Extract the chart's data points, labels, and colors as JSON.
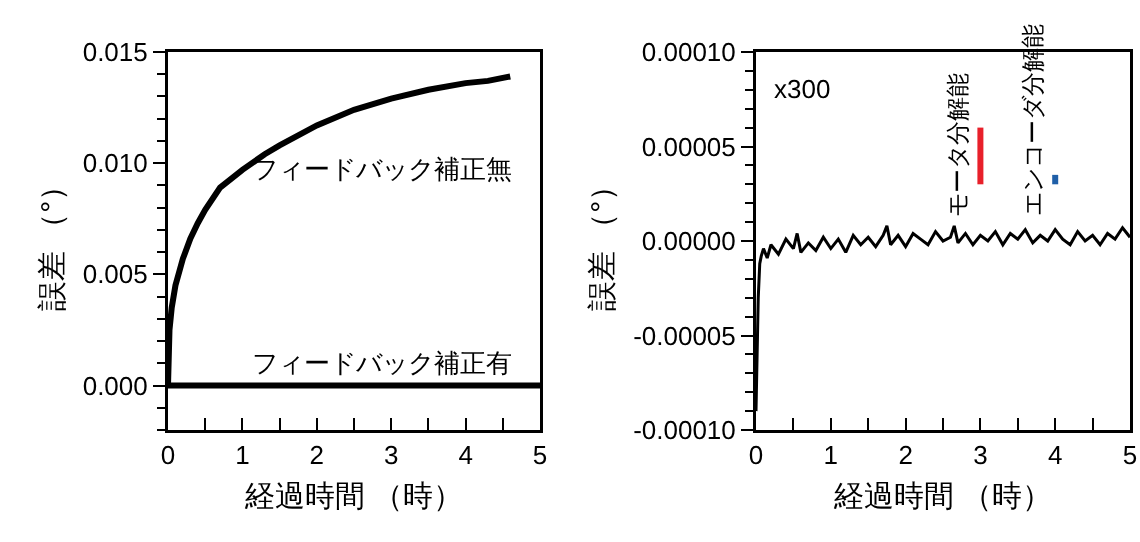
{
  "chart_data": [
    {
      "type": "line",
      "xlabel": "経過時間 （時）",
      "ylabel": "誤差 （°）",
      "xlim": [
        0,
        5
      ],
      "xticks": [
        0,
        1,
        2,
        3,
        4,
        5
      ],
      "ylim": [
        -0.002,
        0.015
      ],
      "yticks": [
        {
          "value": 0,
          "label": "0.000"
        },
        {
          "value": 0.005,
          "label": "0.005"
        },
        {
          "value": 0.01,
          "label": "0.010"
        },
        {
          "value": 0.015,
          "label": "0.015"
        }
      ],
      "grid": false,
      "legend": false,
      "series": [
        {
          "name": "フィードバック補正無",
          "color": "#000000",
          "x": [
            0,
            0.02,
            0.05,
            0.1,
            0.2,
            0.3,
            0.4,
            0.5,
            0.7,
            1,
            1.3,
            1.5,
            2,
            2.5,
            3,
            3.5,
            4,
            4.3,
            4.6
          ],
          "values": [
            0,
            0.0025,
            0.0035,
            0.0045,
            0.0057,
            0.0066,
            0.0073,
            0.0079,
            0.0089,
            0.0097,
            0.0104,
            0.0108,
            0.0117,
            0.0124,
            0.0129,
            0.0133,
            0.0136,
            0.0137,
            0.0139
          ]
        },
        {
          "name": "フィードバック補正有",
          "color": "#000000",
          "x": [
            0,
            5
          ],
          "values": [
            0,
            0
          ]
        }
      ]
    },
    {
      "type": "line",
      "xlabel": "経過時間 （時）",
      "ylabel": "誤差 （°）",
      "xlim": [
        0,
        5
      ],
      "xticks": [
        0,
        1,
        2,
        3,
        4,
        5
      ],
      "ylim": [
        -0.0001,
        0.0001
      ],
      "yticks": [
        {
          "value": -0.0001,
          "label": "-0.00010"
        },
        {
          "value": -5e-05,
          "label": "-0.00005"
        },
        {
          "value": 0,
          "label": "0.00000"
        },
        {
          "value": 5e-05,
          "label": "0.00005"
        },
        {
          "value": 0.0001,
          "label": "0.00010"
        }
      ],
      "grid": false,
      "legend": false,
      "annotations": [
        "x300"
      ],
      "series": [
        {
          "color": "#000000",
          "x": [
            0,
            0.01,
            0.02,
            0.03,
            0.05,
            0.07,
            0.1,
            0.15,
            0.2,
            0.3,
            0.4,
            0.5,
            0.55,
            0.6,
            0.7,
            0.8,
            0.9,
            1,
            1.1,
            1.2,
            1.3,
            1.4,
            1.5,
            1.6,
            1.7,
            1.75,
            1.8,
            1.9,
            2,
            2.1,
            2.2,
            2.3,
            2.4,
            2.5,
            2.6,
            2.65,
            2.7,
            2.8,
            2.9,
            3,
            3.1,
            3.2,
            3.3,
            3.4,
            3.5,
            3.6,
            3.7,
            3.8,
            3.9,
            4,
            4.1,
            4.2,
            4.3,
            4.4,
            4.5,
            4.6,
            4.7,
            4.8,
            4.9,
            5
          ],
          "values": [
            -9e-05,
            -7e-05,
            -5e-05,
            -3e-05,
            -1.2e-05,
            -8e-06,
            -4e-06,
            -9e-06,
            -2e-06,
            -7e-06,
            1e-06,
            -4e-06,
            4e-06,
            -6e-06,
            -1e-06,
            -5e-06,
            2e-06,
            -4e-06,
            1e-06,
            -6e-06,
            3e-06,
            -2e-06,
            2e-06,
            -3e-06,
            3e-06,
            8e-06,
            -2e-06,
            3e-06,
            -3e-06,
            4e-06,
            1e-06,
            -2e-06,
            5e-06,
            0,
            2e-06,
            8e-06,
            -1e-06,
            4e-06,
            -2e-06,
            3e-06,
            0,
            5e-06,
            -2e-06,
            4e-06,
            1e-06,
            6e-06,
            -1e-06,
            3e-06,
            0,
            6e-06,
            1e-06,
            -2e-06,
            5e-06,
            0,
            3e-06,
            -2e-06,
            4e-06,
            1e-06,
            7e-06,
            2e-06
          ]
        },
        {
          "name": "モータ分解能",
          "color": "#e8202a",
          "x": [
            3,
            3
          ],
          "values": [
            3e-05,
            6e-05
          ]
        },
        {
          "name": "エンコーダ分解能",
          "color": "#1f5fa8",
          "x": [
            4,
            4
          ],
          "values": [
            3e-05,
            3.5e-05
          ]
        }
      ]
    }
  ]
}
